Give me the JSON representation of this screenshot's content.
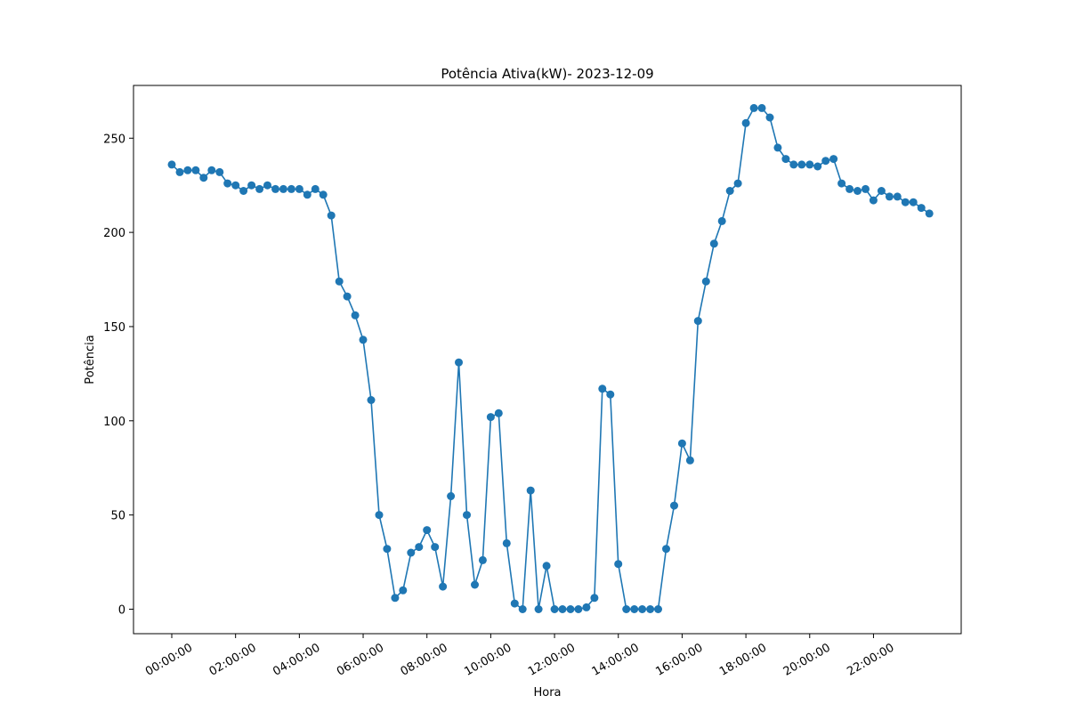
{
  "chart_data": {
    "type": "line",
    "title": "Potência Ativa(kW)- 2023-12-09",
    "xlabel": "Hora",
    "ylabel": "Potência",
    "xlim_hours": [
      -1.2,
      24.75
    ],
    "ylim": [
      -13,
      278
    ],
    "x_ticks": [
      "00:00:00",
      "02:00:00",
      "04:00:00",
      "06:00:00",
      "08:00:00",
      "10:00:00",
      "12:00:00",
      "14:00:00",
      "16:00:00",
      "18:00:00",
      "20:00:00",
      "22:00:00"
    ],
    "y_ticks": [
      0,
      50,
      100,
      150,
      200,
      250
    ],
    "series_color": "#1f77b4",
    "grid": false,
    "legend": "none",
    "interval_minutes": 15,
    "values": [
      236,
      232,
      233,
      233,
      229,
      233,
      232,
      226,
      225,
      222,
      225,
      223,
      225,
      223,
      223,
      223,
      223,
      220,
      223,
      220,
      209,
      174,
      166,
      156,
      143,
      111,
      50,
      32,
      6,
      10,
      30,
      33,
      42,
      33,
      12,
      60,
      131,
      50,
      13,
      26,
      102,
      104,
      35,
      3,
      0,
      63,
      0,
      23,
      0,
      0,
      0,
      0,
      1,
      6,
      117,
      114,
      24,
      0,
      0,
      0,
      0,
      0,
      32,
      55,
      88,
      79,
      153,
      174,
      194,
      206,
      222,
      226,
      258,
      266,
      266,
      261,
      245,
      239,
      236,
      236,
      236,
      235,
      238,
      239,
      226,
      223,
      222,
      223,
      217,
      222,
      219,
      219,
      216,
      216,
      213,
      210
    ]
  }
}
